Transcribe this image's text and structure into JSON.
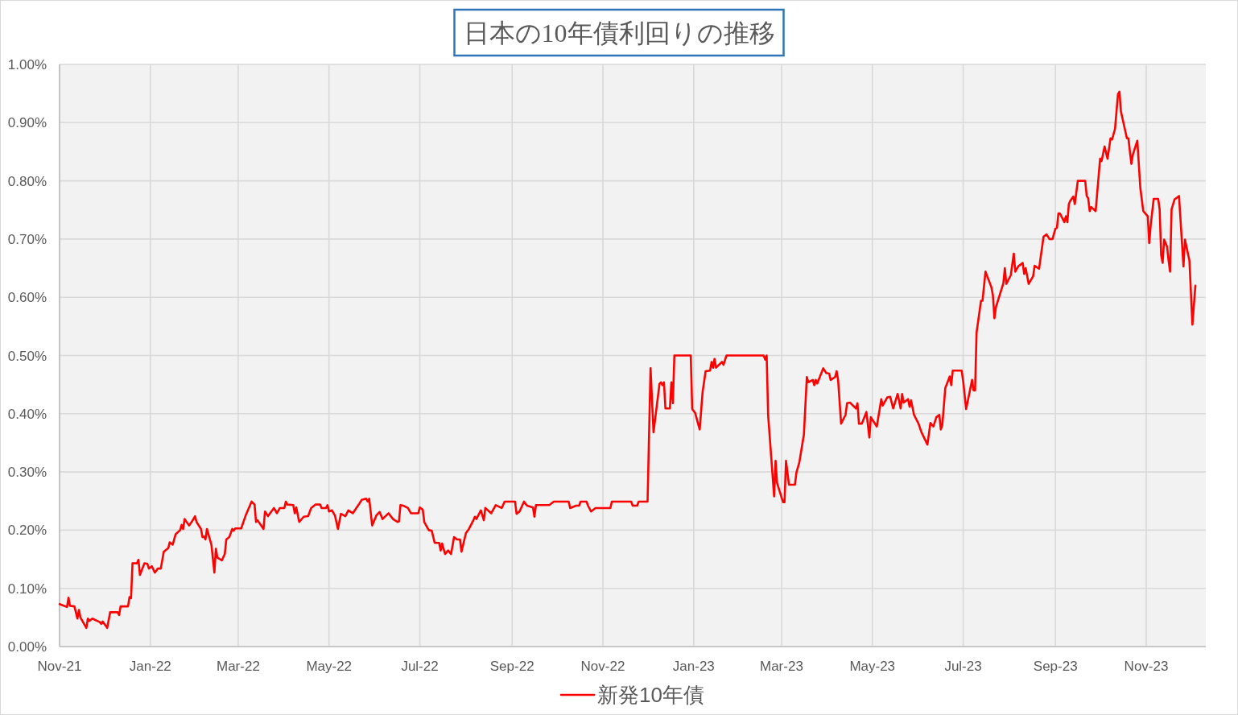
{
  "chart_data": {
    "type": "line",
    "title": "日本の10年債利回りの推移",
    "x": [
      "2021-11-18",
      "2021-11-23",
      "2021-11-24",
      "2021-11-25",
      "2021-11-28",
      "2021-11-30",
      "2021-12-01",
      "2021-12-02",
      "2021-12-06",
      "2021-12-07",
      "2021-12-08",
      "2021-12-10",
      "2021-12-15",
      "2021-12-16",
      "2021-12-17",
      "2021-12-20",
      "2021-12-22",
      "2021-12-27",
      "2021-12-28",
      "2021-12-29",
      "2022-01-03",
      "2022-01-04",
      "2022-01-05",
      "2022-01-06",
      "2022-01-09",
      "2022-01-10",
      "2022-01-11",
      "2022-01-14",
      "2022-01-16",
      "2022-01-17",
      "2022-01-19",
      "2022-01-21",
      "2022-01-23",
      "2022-01-25",
      "2022-01-27",
      "2022-01-30",
      "2022-01-31",
      "2022-02-02",
      "2022-02-04",
      "2022-02-07",
      "2022-02-08",
      "2022-02-09",
      "2022-02-10",
      "2022-02-13",
      "2022-02-15",
      "2022-02-17",
      "2022-02-18",
      "2022-02-21",
      "2022-02-22",
      "2022-02-23",
      "2022-02-24",
      "2022-02-25",
      "2022-02-28",
      "2022-03-02",
      "2022-03-03",
      "2022-03-04",
      "2022-03-07",
      "2022-03-09",
      "2022-03-10",
      "2022-03-12",
      "2022-03-14",
      "2022-03-15",
      "2022-03-16",
      "2022-03-20",
      "2022-03-23",
      "2022-03-27",
      "2022-03-29",
      "2022-03-30",
      "2022-03-31",
      "2022-04-04",
      "2022-04-05",
      "2022-04-07",
      "2022-04-11",
      "2022-04-13",
      "2022-04-15",
      "2022-04-18",
      "2022-04-19",
      "2022-04-20",
      "2022-04-24",
      "2022-04-25",
      "2022-04-26",
      "2022-04-28",
      "2022-05-01",
      "2022-05-04",
      "2022-05-06",
      "2022-05-09",
      "2022-05-12",
      "2022-05-13",
      "2022-05-16",
      "2022-05-17",
      "2022-05-18",
      "2022-05-20",
      "2022-05-22",
      "2022-05-24",
      "2022-05-26",
      "2022-05-29",
      "2022-05-31",
      "2022-06-03",
      "2022-06-07",
      "2022-06-09",
      "2022-06-12",
      "2022-06-13",
      "2022-06-14",
      "2022-06-16",
      "2022-06-19",
      "2022-06-21",
      "2022-06-23",
      "2022-06-27",
      "2022-06-30",
      "2022-07-03",
      "2022-07-04",
      "2022-07-05",
      "2022-07-07",
      "2022-07-10",
      "2022-07-12",
      "2022-07-17",
      "2022-07-18",
      "2022-07-20",
      "2022-07-21",
      "2022-07-24",
      "2022-07-26",
      "2022-07-28",
      "2022-07-31",
      "2022-08-01",
      "2022-08-02",
      "2022-08-04",
      "2022-08-06",
      "2022-08-08",
      "2022-08-10",
      "2022-08-12",
      "2022-08-14",
      "2022-08-15",
      "2022-08-18",
      "2022-08-20",
      "2022-08-23",
      "2022-08-24",
      "2022-08-25",
      "2022-08-28",
      "2022-08-30",
      "2022-08-31",
      "2022-09-04",
      "2022-09-07",
      "2022-09-11",
      "2022-09-13",
      "2022-09-20",
      "2022-09-21",
      "2022-09-23",
      "2022-09-26",
      "2022-09-28",
      "2022-10-02",
      "2022-10-03",
      "2022-10-04",
      "2022-10-13",
      "2022-10-16",
      "2022-10-26",
      "2022-10-27",
      "2022-10-31",
      "2022-11-02",
      "2022-11-03",
      "2022-11-07",
      "2022-11-08",
      "2022-11-10",
      "2022-11-13",
      "2022-11-23",
      "2022-11-24",
      "2022-12-07",
      "2022-12-08",
      "2022-12-11",
      "2022-12-12",
      "2022-12-18",
      "2022-12-20",
      "2022-12-22",
      "2022-12-26",
      "2022-12-27",
      "2022-12-28",
      "2022-12-29",
      "2022-12-30",
      "2023-01-02",
      "2023-01-03",
      "2023-01-04",
      "2023-01-05",
      "2023-01-16",
      "2023-01-17",
      "2023-01-19",
      "2023-01-22",
      "2023-01-24",
      "2023-01-26",
      "2023-01-29",
      "2023-01-30",
      "2023-01-31",
      "2023-02-01",
      "2023-02-02",
      "2023-02-06",
      "2023-02-07",
      "2023-02-09",
      "2023-03-06",
      "2023-03-07",
      "2023-03-08",
      "2023-03-09",
      "2023-03-13",
      "2023-03-14",
      "2023-03-15",
      "2023-03-19",
      "2023-03-20",
      "2023-03-21",
      "2023-03-23",
      "2023-03-27",
      "2023-03-28",
      "2023-03-30",
      "2023-04-02",
      "2023-04-04",
      "2023-04-05",
      "2023-04-08",
      "2023-04-09",
      "2023-04-10",
      "2023-04-11",
      "2023-04-15",
      "2023-04-17",
      "2023-04-19",
      "2023-04-20",
      "2023-04-23",
      "2023-04-24",
      "2023-04-25",
      "2023-04-27",
      "2023-04-30",
      "2023-05-01",
      "2023-05-03",
      "2023-05-07",
      "2023-05-08",
      "2023-05-09",
      "2023-05-11",
      "2023-05-14",
      "2023-05-16",
      "2023-05-17",
      "2023-05-21",
      "2023-05-24",
      "2023-05-25",
      "2023-05-28",
      "2023-05-30",
      "2023-06-01",
      "2023-06-04",
      "2023-06-06",
      "2023-06-07",
      "2023-06-08",
      "2023-06-11",
      "2023-06-12",
      "2023-06-13",
      "2023-06-15",
      "2023-06-18",
      "2023-06-20",
      "2023-06-24",
      "2023-06-26",
      "2023-06-28",
      "2023-06-30",
      "2023-07-02",
      "2023-07-03",
      "2023-07-04",
      "2023-07-06",
      "2023-07-09",
      "2023-07-10",
      "2023-07-11",
      "2023-07-17",
      "2023-07-18",
      "2023-07-20",
      "2023-07-24",
      "2023-07-25",
      "2023-07-26",
      "2023-07-27",
      "2023-07-30",
      "2023-07-31",
      "2023-08-02",
      "2023-08-06",
      "2023-08-07",
      "2023-08-08",
      "2023-08-09",
      "2023-08-14",
      "2023-08-15",
      "2023-08-16",
      "2023-08-19",
      "2023-08-21",
      "2023-08-22",
      "2023-08-24",
      "2023-08-27",
      "2023-08-28",
      "2023-08-29",
      "2023-08-31",
      "2023-09-03",
      "2023-09-04",
      "2023-09-07",
      "2023-09-10",
      "2023-09-12",
      "2023-09-14",
      "2023-09-16",
      "2023-09-18",
      "2023-09-19",
      "2023-09-20",
      "2023-09-21",
      "2023-09-24",
      "2023-09-25",
      "2023-09-26",
      "2023-09-27",
      "2023-09-28",
      "2023-09-30",
      "2023-10-01",
      "2023-10-03",
      "2023-10-08",
      "2023-10-09",
      "2023-10-10",
      "2023-10-11",
      "2023-10-12",
      "2023-10-15",
      "2023-10-18",
      "2023-10-19",
      "2023-10-21",
      "2023-10-23",
      "2023-10-25",
      "2023-10-26",
      "2023-10-28",
      "2023-10-30",
      "2023-10-31",
      "2023-11-01",
      "2023-11-05",
      "2023-11-06",
      "2023-11-08",
      "2023-11-09",
      "2023-11-12",
      "2023-11-14",
      "2023-11-16",
      "2023-11-19",
      "2023-11-20",
      "2023-11-21",
      "2023-11-23",
      "2023-11-26",
      "2023-11-27",
      "2023-11-28",
      "2023-11-29",
      "2023-11-30",
      "2023-12-02",
      "2023-12-03",
      "2023-12-04",
      "2023-12-05",
      "2023-12-07",
      "2023-12-10",
      "2023-12-13",
      "2023-12-14",
      "2023-12-17",
      "2023-12-19",
      "2023-12-21"
    ],
    "series": [
      {
        "name": "新発10年債",
        "color": "#ff0000",
        "values": [
          0.073,
          0.068,
          0.084,
          0.07,
          0.069,
          0.048,
          0.063,
          0.05,
          0.032,
          0.048,
          0.044,
          0.048,
          0.042,
          0.039,
          0.043,
          0.032,
          0.059,
          0.059,
          0.054,
          0.069,
          0.069,
          0.085,
          0.083,
          0.143,
          0.143,
          0.149,
          0.123,
          0.143,
          0.142,
          0.134,
          0.138,
          0.127,
          0.134,
          0.134,
          0.163,
          0.169,
          0.179,
          0.175,
          0.193,
          0.2,
          0.209,
          0.202,
          0.219,
          0.208,
          0.215,
          0.224,
          0.214,
          0.202,
          0.188,
          0.189,
          0.184,
          0.202,
          0.175,
          0.127,
          0.168,
          0.153,
          0.148,
          0.159,
          0.184,
          0.188,
          0.202,
          0.199,
          0.203,
          0.203,
          0.225,
          0.249,
          0.244,
          0.214,
          0.217,
          0.202,
          0.232,
          0.224,
          0.238,
          0.229,
          0.238,
          0.238,
          0.249,
          0.244,
          0.243,
          0.229,
          0.239,
          0.214,
          0.223,
          0.224,
          0.238,
          0.244,
          0.244,
          0.238,
          0.238,
          0.243,
          0.232,
          0.234,
          0.225,
          0.202,
          0.228,
          0.224,
          0.234,
          0.229,
          0.244,
          0.252,
          0.254,
          0.249,
          0.254,
          0.208,
          0.226,
          0.231,
          0.219,
          0.229,
          0.219,
          0.214,
          0.215,
          0.243,
          0.242,
          0.238,
          0.229,
          0.229,
          0.239,
          0.235,
          0.214,
          0.2,
          0.199,
          0.178,
          0.178,
          0.165,
          0.177,
          0.159,
          0.165,
          0.159,
          0.188,
          0.184,
          0.184,
          0.163,
          0.195,
          0.202,
          0.217,
          0.223,
          0.219,
          0.234,
          0.217,
          0.238,
          0.229,
          0.243,
          0.238,
          0.249,
          0.249,
          0.228,
          0.232,
          0.249,
          0.242,
          0.239,
          0.223,
          0.243,
          0.243,
          0.249,
          0.249,
          0.238,
          0.242,
          0.242,
          0.249,
          0.249,
          0.242,
          0.232,
          0.238,
          0.238,
          0.249,
          0.249,
          0.242,
          0.242,
          0.249,
          0.249,
          0.478,
          0.368,
          0.451,
          0.454,
          0.449,
          0.454,
          0.409,
          0.409,
          0.454,
          0.418,
          0.5,
          0.5,
          0.408,
          0.401,
          0.373,
          0.438,
          0.473,
          0.474,
          0.489,
          0.479,
          0.494,
          0.479,
          0.489,
          0.484,
          0.5,
          0.5,
          0.493,
          0.5,
          0.397,
          0.258,
          0.319,
          0.281,
          0.248,
          0.248,
          0.319,
          0.278,
          0.278,
          0.299,
          0.317,
          0.364,
          0.463,
          0.454,
          0.458,
          0.449,
          0.458,
          0.452,
          0.478,
          0.47,
          0.469,
          0.458,
          0.463,
          0.473,
          0.458,
          0.383,
          0.398,
          0.418,
          0.419,
          0.409,
          0.418,
          0.383,
          0.383,
          0.403,
          0.359,
          0.394,
          0.378,
          0.425,
          0.414,
          0.428,
          0.429,
          0.409,
          0.434,
          0.409,
          0.434,
          0.419,
          0.425,
          0.412,
          0.423,
          0.398,
          0.383,
          0.368,
          0.347,
          0.384,
          0.378,
          0.394,
          0.398,
          0.373,
          0.381,
          0.444,
          0.464,
          0.449,
          0.474,
          0.474,
          0.456,
          0.408,
          0.458,
          0.44,
          0.44,
          0.539,
          0.594,
          0.594,
          0.644,
          0.617,
          0.603,
          0.564,
          0.583,
          0.624,
          0.65,
          0.623,
          0.638,
          0.675,
          0.644,
          0.653,
          0.659,
          0.64,
          0.65,
          0.623,
          0.636,
          0.654,
          0.649,
          0.704,
          0.708,
          0.7,
          0.7,
          0.718,
          0.719,
          0.744,
          0.744,
          0.729,
          0.739,
          0.729,
          0.76,
          0.766,
          0.773,
          0.76,
          0.8,
          0.8,
          0.774,
          0.77,
          0.748,
          0.755,
          0.748,
          0.838,
          0.834,
          0.859,
          0.838,
          0.873,
          0.871,
          0.889,
          0.949,
          0.953,
          0.919,
          0.873,
          0.873,
          0.829,
          0.845,
          0.869,
          0.788,
          0.748,
          0.739,
          0.693,
          0.724,
          0.769,
          0.769,
          0.751,
          0.673,
          0.659,
          0.699,
          0.687,
          0.663,
          0.644,
          0.751,
          0.768,
          0.774,
          0.653,
          0.699,
          0.663,
          0.553,
          0.62
        ]
      }
    ],
    "xlim": [
      "2021-11-18",
      "2023-12-28"
    ],
    "xticks": [
      {
        "value": "2021-11-18",
        "label": "Nov-21"
      },
      {
        "value": "2022-01-18",
        "label": "Jan-22"
      },
      {
        "value": "2022-03-18",
        "label": "Mar-22"
      },
      {
        "value": "2022-05-18",
        "label": "May-22"
      },
      {
        "value": "2022-07-18",
        "label": "Jul-22"
      },
      {
        "value": "2022-09-18",
        "label": "Sep-22"
      },
      {
        "value": "2022-11-18",
        "label": "Nov-22"
      },
      {
        "value": "2023-01-18",
        "label": "Jan-23"
      },
      {
        "value": "2023-03-18",
        "label": "Mar-23"
      },
      {
        "value": "2023-05-18",
        "label": "May-23"
      },
      {
        "value": "2023-07-18",
        "label": "Jul-23"
      },
      {
        "value": "2023-09-18",
        "label": "Sep-23"
      },
      {
        "value": "2023-11-18",
        "label": "Nov-23"
      }
    ],
    "ylim": [
      0,
      1
    ],
    "yticks": [
      {
        "value": 0,
        "label": "0.00%"
      },
      {
        "value": 0.1,
        "label": "0.10%"
      },
      {
        "value": 0.2,
        "label": "0.20%"
      },
      {
        "value": 0.3,
        "label": "0.30%"
      },
      {
        "value": 0.4,
        "label": "0.40%"
      },
      {
        "value": 0.5,
        "label": "0.50%"
      },
      {
        "value": 0.6,
        "label": "0.60%"
      },
      {
        "value": 0.7,
        "label": "0.70%"
      },
      {
        "value": 0.8,
        "label": "0.80%"
      },
      {
        "value": 0.9,
        "label": "0.90%"
      },
      {
        "value": 1,
        "label": "1.00%"
      }
    ],
    "grid": true,
    "legend": "bottom",
    "line_style": "solid"
  }
}
